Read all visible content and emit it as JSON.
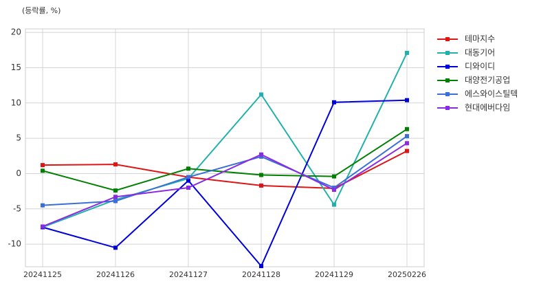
{
  "chart_data": {
    "type": "line",
    "y_label": "(등락률, %)",
    "categories": [
      "20241125",
      "20241126",
      "20241127",
      "20241128",
      "20241129",
      "20250226"
    ],
    "series": [
      {
        "name": "테마지수",
        "color": "#dd1515",
        "values": [
          1.2,
          1.3,
          -0.5,
          -1.7,
          -2.1,
          3.2
        ]
      },
      {
        "name": "대동기어",
        "color": "#20b2aa",
        "values": [
          -7.6,
          -3.7,
          -0.7,
          11.2,
          -4.4,
          17.1
        ]
      },
      {
        "name": "디와이디",
        "color": "#0000dd",
        "values": [
          -7.6,
          -10.5,
          -1.0,
          -13.1,
          10.1,
          10.4
        ]
      },
      {
        "name": "대양전기공업",
        "color": "#008000",
        "values": [
          0.4,
          -2.4,
          0.7,
          -0.2,
          -0.4,
          6.3
        ]
      },
      {
        "name": "에스와이스틸텍",
        "color": "#3a6fd8",
        "values": [
          -4.5,
          -3.9,
          -0.5,
          2.4,
          -2.0,
          5.3
        ]
      },
      {
        "name": "현대에버다임",
        "color": "#8a2be2",
        "values": [
          -7.5,
          -3.3,
          -2.0,
          2.7,
          -2.3,
          4.3
        ]
      }
    ],
    "ylim": [
      -13.2,
      20.5
    ],
    "yticks": [
      -10,
      -5,
      0,
      5,
      10,
      15,
      20
    ],
    "grid": true,
    "legend": "right"
  }
}
